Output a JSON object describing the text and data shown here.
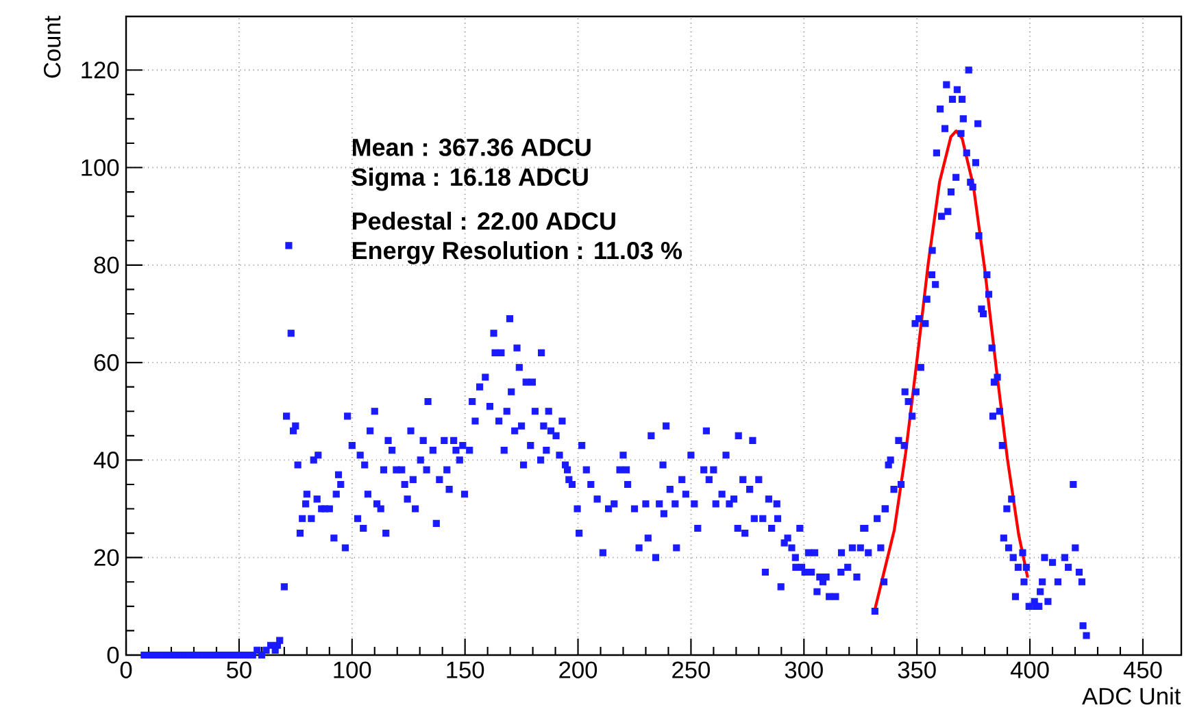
{
  "chart_data": {
    "type": "scatter",
    "xlabel": "ADC Unit",
    "ylabel": "Count",
    "xlim": [
      0,
      467
    ],
    "ylim": [
      0,
      131
    ],
    "xticks": [
      0,
      50,
      100,
      150,
      200,
      250,
      300,
      350,
      400,
      450
    ],
    "yticks": [
      0,
      20,
      40,
      60,
      80,
      100,
      120
    ],
    "grid": true,
    "marker": "square",
    "annotations": [
      "**Mean : 367.36 ADCU**",
      "**Sigma : 16.18 ADCU**",
      "**Pedestal : 22.00 ADCU**",
      "**Energy Resolution : 11.03 %**"
    ],
    "series": [
      {
        "color": "#1a1aff",
        "x": [
          8,
          10,
          12,
          14,
          16,
          18,
          20,
          22,
          24,
          26,
          28,
          30,
          32,
          34,
          36,
          38,
          40,
          42,
          44,
          46,
          48,
          50,
          52,
          54,
          56,
          58,
          60,
          62,
          64,
          66,
          67,
          68,
          70,
          71,
          72,
          73,
          74,
          75,
          76,
          77,
          78,
          79.5,
          80,
          82,
          83,
          84.5,
          85,
          86.5,
          88,
          90,
          92,
          93,
          94,
          95,
          97,
          98,
          100,
          102.5,
          103.6,
          105,
          105.6,
          107,
          108,
          110,
          111,
          112.7,
          114,
          115,
          116,
          117.7,
          119.6,
          122,
          123.3,
          124.5,
          126,
          127,
          128,
          130.3,
          131.5,
          133,
          133.6,
          135.8,
          137.3,
          138.7,
          140.8,
          142,
          143,
          145,
          146,
          147.6,
          149,
          149.8,
          152,
          153.2,
          154.5,
          156.5,
          159,
          161,
          162.7,
          163.3,
          165,
          166,
          167.3,
          168.5,
          169.8,
          170.5,
          172,
          173,
          174,
          175,
          175.9,
          177,
          179,
          179.8,
          181,
          183.5,
          183.8,
          184.8,
          186,
          187,
          188,
          190.3,
          191.8,
          193,
          194.4,
          195.3,
          196,
          197.4,
          199.7,
          200.5,
          201.7,
          203.7,
          205.7,
          208.5,
          211,
          213.5,
          216,
          218.5,
          220,
          221.4,
          222,
          225,
          227,
          230,
          231,
          232.4,
          234.4,
          236,
          237.6,
          238,
          239,
          240.7,
          243,
          243.6,
          246,
          247.7,
          250,
          251.5,
          253,
          255.7,
          256.8,
          258,
          260,
          261,
          263.7,
          265.5,
          267,
          269,
          270.7,
          271,
          273,
          273.9,
          276,
          277.3,
          278,
          280,
          281.8,
          282.9,
          284.4,
          285.7,
          288,
          288.4,
          289.8,
          291.3,
          292.8,
          294.6,
          296.2,
          296.4,
          298.2,
          299,
          300.4,
          302,
          303.3,
          304.8,
          305.8,
          307,
          308.4,
          309.8,
          311.2,
          314,
          316.4,
          316.6,
          319.4,
          321.4,
          323.4,
          325,
          326.4,
          327,
          328.5,
          331.4,
          332.4,
          334,
          335.4,
          335.9,
          336,
          337.4,
          338.3,
          339.8,
          341.9,
          343,
          344.4,
          344.7,
          346.2,
          347.9,
          349.2,
          349.6,
          350.9,
          351.7,
          353.7,
          354.4,
          356.6,
          356.8,
          358.2,
          358.7,
          360.3,
          360.9,
          362.4,
          363.1,
          363.7,
          365.1,
          365.7,
          367.3,
          367.8,
          369.5,
          370,
          370.5,
          372,
          372.9,
          373.7,
          374.7,
          376,
          377,
          377.4,
          378.6,
          379.4,
          381,
          381.8,
          383.2,
          383.6,
          384.2,
          385.6,
          386.6,
          387.8,
          388.4,
          389.8,
          390.6,
          391.9,
          392.6,
          393.6,
          394.8,
          396.8,
          397.4,
          398.4,
          399.6,
          402,
          402.6,
          404,
          404.6,
          405.5,
          406.5,
          408,
          410,
          412.4,
          415.4,
          417,
          419.2,
          420.1,
          421.8,
          423,
          423.5,
          425
        ],
        "values": [
          0,
          0,
          0,
          0,
          0,
          0,
          0,
          0,
          0,
          0,
          0,
          0,
          0,
          0,
          0,
          0,
          0,
          0,
          0,
          0,
          0,
          0,
          0,
          0,
          0,
          1,
          0,
          1,
          2,
          1,
          2,
          3,
          14,
          49,
          84,
          66,
          46,
          47,
          39,
          25,
          28,
          31,
          33,
          28,
          40,
          32,
          41,
          30,
          30,
          30,
          24,
          33,
          37,
          35,
          22,
          49,
          43,
          28,
          41,
          26,
          39,
          33,
          46,
          50,
          31,
          30,
          38,
          25,
          44,
          42,
          38,
          38,
          35,
          32,
          46,
          36,
          30,
          40,
          44,
          38,
          52,
          42,
          27,
          36,
          44,
          38,
          34,
          44,
          42,
          40,
          43,
          33,
          42,
          52,
          48,
          55,
          57,
          51,
          66,
          62,
          48,
          62,
          42,
          50,
          69,
          54,
          46,
          63,
          59,
          47,
          39,
          56,
          43,
          56,
          50,
          40,
          62,
          47,
          42,
          50,
          46,
          45,
          41,
          48,
          39,
          38,
          36,
          35,
          30,
          25,
          43,
          38,
          35,
          32,
          21,
          30,
          31,
          38,
          41,
          38,
          35,
          30,
          22,
          31,
          24,
          45,
          20,
          31,
          39,
          29,
          47,
          34,
          31,
          22,
          36,
          33,
          41,
          31,
          26,
          38,
          46,
          36,
          38,
          31,
          33,
          41,
          31,
          32,
          26,
          45,
          36,
          25,
          34,
          44,
          28,
          36,
          28,
          17,
          32,
          26,
          31,
          28,
          14,
          23,
          24,
          22,
          20,
          18,
          26,
          18,
          17,
          21,
          17,
          21,
          13,
          16,
          15,
          16,
          12,
          12,
          17,
          21,
          18,
          22,
          16,
          22,
          26,
          26,
          21,
          9,
          28,
          22,
          15,
          30,
          30,
          39,
          40,
          34,
          44,
          35,
          43,
          54,
          52,
          49,
          68,
          54,
          69,
          59,
          68,
          73,
          78,
          83,
          76,
          103,
          112,
          90,
          108,
          117,
          91,
          95,
          114,
          98,
          116,
          107,
          114,
          110,
          103,
          120,
          97,
          96,
          101,
          109,
          86,
          71,
          70,
          78,
          74,
          63,
          49,
          56,
          57,
          50,
          43,
          24,
          30,
          22,
          32,
          20,
          12,
          18,
          21,
          15,
          18,
          10,
          11,
          10,
          10,
          13,
          15,
          20,
          11,
          19,
          15,
          20,
          18,
          35,
          22,
          17,
          15,
          6,
          4
        ]
      },
      {
        "type": "line",
        "marker": "none",
        "color": "#ff0000",
        "x": [
          331,
          340,
          345,
          350,
          355,
          360,
          365,
          367.36,
          370,
          375,
          380,
          385,
          390,
          395,
          399
        ],
        "values": [
          8.6,
          25.7,
          41.4,
          60.4,
          80.3,
          97,
          106.3,
          107.5,
          106,
          96.2,
          79.2,
          59.3,
          40.4,
          24.8,
          15.9
        ]
      }
    ]
  }
}
